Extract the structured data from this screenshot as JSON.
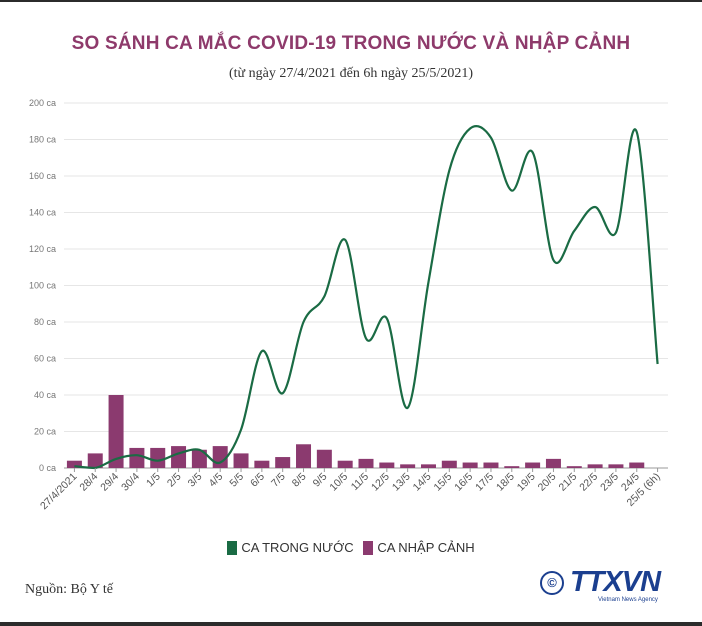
{
  "title": "SO SÁNH CA MẮC COVID-19 TRONG NƯỚC VÀ NHẬP CẢNH",
  "subtitle": "(từ ngày 27/4/2021 đến 6h ngày 25/5/2021)",
  "source": "Nguồn: Bộ Y tế",
  "logo": {
    "symbol": "©",
    "text": "TTXVN",
    "sub": "Vietnam News Agency"
  },
  "colors": {
    "domestic": "#1a6b44",
    "imported": "#8b3a6f",
    "title": "#8e3a6b"
  },
  "legend": {
    "domestic": "CA TRONG NƯỚC",
    "imported": "CA NHẬP CẢNH"
  },
  "chart_data": {
    "type": "bar",
    "categories": [
      "27/4/2021",
      "28/4",
      "29/4",
      "30/4",
      "1/5",
      "2/5",
      "3/5",
      "4/5",
      "5/5",
      "6/5",
      "7/5",
      "8/5",
      "9/5",
      "10/5",
      "11/5",
      "12/5",
      "13/5",
      "14/5",
      "15/5",
      "16/5",
      "17/5",
      "18/5",
      "19/5",
      "20/5",
      "21/5",
      "22/5",
      "23/5",
      "24/5",
      "25/5 (6h)"
    ],
    "ylim": [
      0,
      200
    ],
    "yticks": [
      "0 ca",
      "20 ca",
      "40 ca",
      "60 ca",
      "80 ca",
      "100 ca",
      "120 ca",
      "140 ca",
      "160 ca",
      "180 ca",
      "200 ca"
    ],
    "grid": true,
    "legend_position": "bottom",
    "series": [
      {
        "name": "CA NHẬP CẢNH",
        "type": "bar",
        "values": [
          4,
          8,
          40,
          11,
          11,
          12,
          10,
          12,
          8,
          4,
          6,
          13,
          10,
          4,
          5,
          3,
          2,
          2,
          4,
          3,
          3,
          1,
          3,
          5,
          1,
          2,
          2,
          3,
          0
        ]
      },
      {
        "name": "CA TRONG NƯỚC",
        "type": "line",
        "values": [
          1,
          0,
          5,
          7,
          4,
          8,
          10,
          3,
          21,
          64,
          41,
          80,
          94,
          125,
          71,
          82,
          33,
          102,
          163,
          186,
          181,
          152,
          173,
          114,
          130,
          143,
          129,
          184,
          57
        ]
      }
    ]
  }
}
